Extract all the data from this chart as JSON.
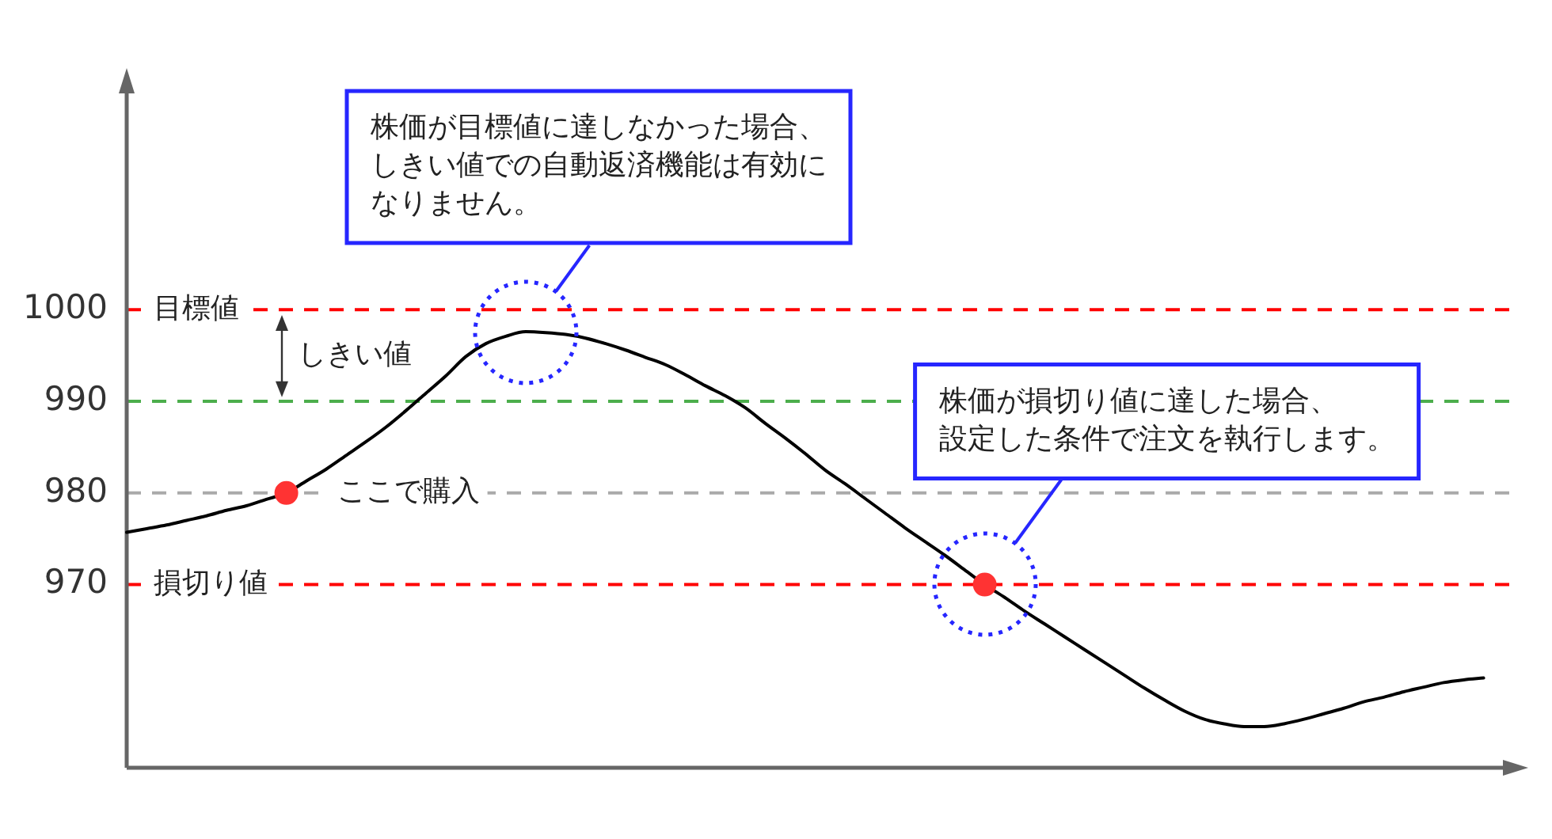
{
  "chart_data": {
    "type": "line",
    "categories": [
      null,
      null,
      null,
      null,
      null,
      null,
      null,
      null,
      null,
      null,
      null,
      null,
      null,
      null,
      null,
      null,
      null,
      null,
      null,
      null,
      null,
      null,
      null,
      null,
      null,
      null,
      null,
      null,
      null,
      null,
      null,
      null,
      null,
      null,
      null,
      null,
      null,
      null,
      null,
      null,
      null,
      null,
      null,
      null,
      null,
      null,
      null,
      null,
      null,
      null,
      null,
      null,
      null,
      null,
      null,
      null,
      null,
      null,
      null,
      null,
      null,
      null,
      null,
      null,
      null,
      null,
      null,
      null,
      null,
      null
    ],
    "series": [
      {
        "color": "#000000",
        "values": [
          975.7,
          976.1,
          976.5,
          977.0,
          977.5,
          978.1,
          978.6,
          979.3,
          980.0,
          981.3,
          982.6,
          984.1,
          985.6,
          987.2,
          989.0,
          990.9,
          992.8,
          994.9,
          996.3,
          997.1,
          997.6,
          997.5,
          997.3,
          996.9,
          996.3,
          995.6,
          994.8,
          994.0,
          992.9,
          991.7,
          990.6,
          989.3,
          987.6,
          986.0,
          984.3,
          982.5,
          981.0,
          979.4,
          977.8,
          976.2,
          974.7,
          973.2,
          971.6,
          970.0,
          968.6,
          967.1,
          965.7,
          964.3,
          962.9,
          961.5,
          960.1,
          958.7,
          957.4,
          956.2,
          955.3,
          954.8,
          954.5,
          954.5,
          954.8,
          955.3,
          955.9,
          956.5,
          957.2,
          957.7,
          958.3,
          958.8,
          959.3,
          959.6,
          959.8,
          null
        ]
      },
      {
        "type": "scatter",
        "name": "ここで購入",
        "color": "#ff3333",
        "marker": "circle",
        "values": [
          null,
          null,
          null,
          null,
          null,
          null,
          null,
          null,
          980,
          null,
          null,
          null,
          null,
          null,
          null,
          null,
          null,
          null,
          null,
          null,
          null,
          null,
          null,
          null,
          null,
          null,
          null,
          null,
          null,
          null,
          null,
          null,
          null,
          null,
          null,
          null,
          null,
          null,
          null,
          null,
          null,
          null,
          null,
          null,
          null,
          null,
          null,
          null,
          null,
          null,
          null,
          null,
          null,
          null,
          null,
          null,
          null,
          null,
          null,
          null,
          null,
          null,
          null,
          null,
          null,
          null,
          null,
          null,
          null,
          null
        ]
      },
      {
        "type": "scatter",
        "color": "#ff3333",
        "marker": "circle",
        "values": [
          null,
          null,
          null,
          null,
          null,
          null,
          null,
          null,
          null,
          null,
          null,
          null,
          null,
          null,
          null,
          null,
          null,
          null,
          null,
          null,
          null,
          null,
          null,
          null,
          null,
          null,
          null,
          null,
          null,
          null,
          null,
          null,
          null,
          null,
          null,
          null,
          null,
          null,
          null,
          null,
          null,
          null,
          null,
          970,
          null,
          null,
          null,
          null,
          null,
          null,
          null,
          null,
          null,
          null,
          null,
          null,
          null,
          null,
          null,
          null,
          null,
          null,
          null,
          null,
          null,
          null,
          null,
          null,
          null,
          null
        ]
      }
    ],
    "ylim": [
      950,
      1025
    ],
    "yticks": [
      970,
      980,
      990,
      1000
    ],
    "tick_labels": "y",
    "ref_lines": [
      {
        "axis": "y",
        "value": 1000,
        "label": "目標値",
        "color": "#ff0000",
        "line_style": "dashed"
      },
      {
        "axis": "y",
        "value": 990,
        "color": "#4cae4c",
        "line_style": "dashed"
      },
      {
        "axis": "y",
        "value": 980,
        "color": "#aaaaaa",
        "line_style": "dashed"
      },
      {
        "axis": "y",
        "value": 970,
        "label": "損切り値",
        "color": "#ff0000",
        "line_style": "dashed"
      }
    ],
    "annotations": [
      "株価が目標値に達しなかった場合、しきい値での自動返済機能は有効になりません。",
      "しきい値",
      "株価が損切り値に達した場合、設定した条件で注文を執行します。"
    ]
  }
}
